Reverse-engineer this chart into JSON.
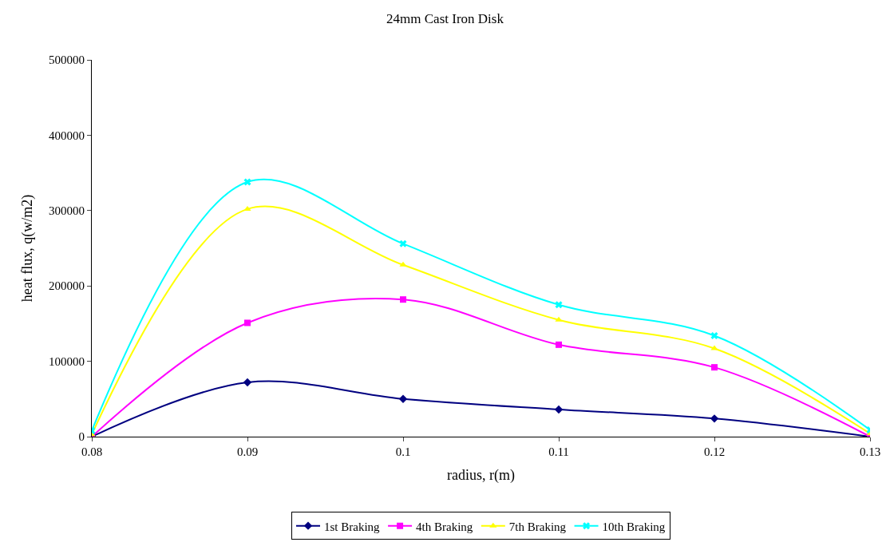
{
  "chart_data": {
    "type": "line",
    "title": "24mm Cast Iron Disk",
    "xlabel": "radius, r(m)",
    "ylabel": "heat flux, q(w/m2)",
    "x": [
      0.08,
      0.09,
      0.1,
      0.11,
      0.12,
      0.13
    ],
    "series": [
      {
        "name": "1st Braking",
        "color": "#000080",
        "marker": "diamond",
        "values": [
          0,
          72000,
          50000,
          36000,
          24000,
          0
        ]
      },
      {
        "name": "4th Braking",
        "color": "#ff00ff",
        "marker": "square",
        "values": [
          0,
          151000,
          182000,
          122000,
          92000,
          0
        ]
      },
      {
        "name": "7th Braking",
        "color": "#ffff00",
        "marker": "triangle",
        "values": [
          3000,
          302000,
          228000,
          155000,
          117000,
          4000
        ]
      },
      {
        "name": "10th Braking",
        "color": "#00ffff",
        "marker": "cross",
        "values": [
          8000,
          338000,
          256000,
          175000,
          134000,
          9000
        ]
      }
    ],
    "xlim": [
      0.08,
      0.13
    ],
    "xticks": [
      0.08,
      0.09,
      0.1,
      0.11,
      0.12,
      0.13
    ],
    "ylim": [
      0,
      500000
    ],
    "yticks": [
      0,
      100000,
      200000,
      300000,
      400000,
      500000
    ],
    "legend": "bottom"
  }
}
